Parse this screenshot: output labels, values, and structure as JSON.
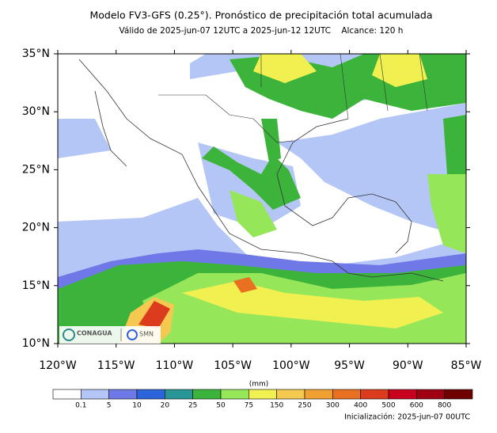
{
  "title": "Modelo FV3-GFS (0.25°). Pronóstico de precipitación total acumulada",
  "subtitle": "Válido de 2025-jun-07 12UTC a 2025-jun-12 12UTC    Alcance: 120 h",
  "map": {
    "lonlim": [
      -120,
      -85
    ],
    "latlim": [
      10,
      35
    ],
    "lon_ticks": [
      {
        "value": -120,
        "label": "120°W"
      },
      {
        "value": -115,
        "label": "115°W"
      },
      {
        "value": -110,
        "label": "110°W"
      },
      {
        "value": -105,
        "label": "105°W"
      },
      {
        "value": -100,
        "label": "100°W"
      },
      {
        "value": -95,
        "label": "95°W"
      },
      {
        "value": -90,
        "label": "90°W"
      },
      {
        "value": -85,
        "label": "85°W"
      }
    ],
    "lat_ticks": [
      {
        "value": 35,
        "label": "35°N"
      },
      {
        "value": 30,
        "label": "30°N"
      },
      {
        "value": 25,
        "label": "25°N"
      },
      {
        "value": 20,
        "label": "20°N"
      },
      {
        "value": 15,
        "label": "15°N"
      },
      {
        "value": 10,
        "label": "10°N"
      }
    ]
  },
  "logos": [
    "CONAGUA",
    "SMN"
  ],
  "colorbar": {
    "unit": "(mm)",
    "bounds": [
      0.1,
      5,
      10,
      20,
      25,
      50,
      75,
      150,
      250,
      300,
      400,
      500,
      600,
      800
    ],
    "colors": [
      "#ffffff",
      "#b4c6f5",
      "#6e78e6",
      "#2d64dc",
      "#289696",
      "#3cb43c",
      "#96e65a",
      "#f0f050",
      "#f5c850",
      "#f0a030",
      "#e87020",
      "#dc3c1e",
      "#c8001e",
      "#a00014",
      "#6e0000"
    ]
  },
  "footer": "Inicialización: 2025-jun-07 00UTC"
}
